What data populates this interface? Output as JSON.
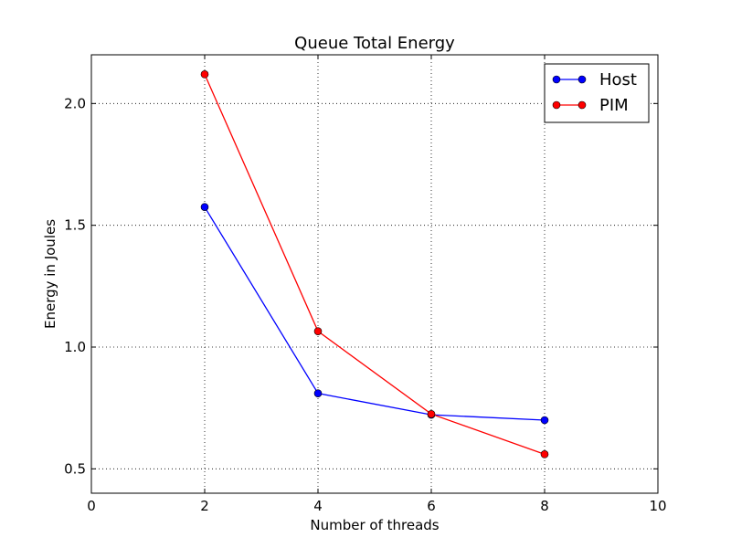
{
  "chart_data": {
    "type": "line",
    "title": "Queue Total Energy",
    "xlabel": "Number of threads",
    "ylabel": "Energy in Joules",
    "xlim": [
      0,
      10
    ],
    "ylim": [
      0.4,
      2.2
    ],
    "xticks": [
      0,
      2,
      4,
      6,
      8,
      10
    ],
    "yticks": [
      0.5,
      1.0,
      1.5,
      2.0
    ],
    "xtick_labels": [
      "0",
      "2",
      "4",
      "6",
      "8",
      "10"
    ],
    "ytick_labels": [
      "0.5",
      "1.0",
      "1.5",
      "2.0"
    ],
    "grid": true,
    "legend": "top-right",
    "series": [
      {
        "name": "Host",
        "color": "#0000ff",
        "x": [
          2,
          4,
          6,
          8
        ],
        "y": [
          1.575,
          0.81,
          0.722,
          0.7
        ]
      },
      {
        "name": "PIM",
        "color": "#ff0000",
        "x": [
          2,
          4,
          6,
          8
        ],
        "y": [
          2.12,
          1.065,
          0.725,
          0.56
        ]
      }
    ]
  }
}
